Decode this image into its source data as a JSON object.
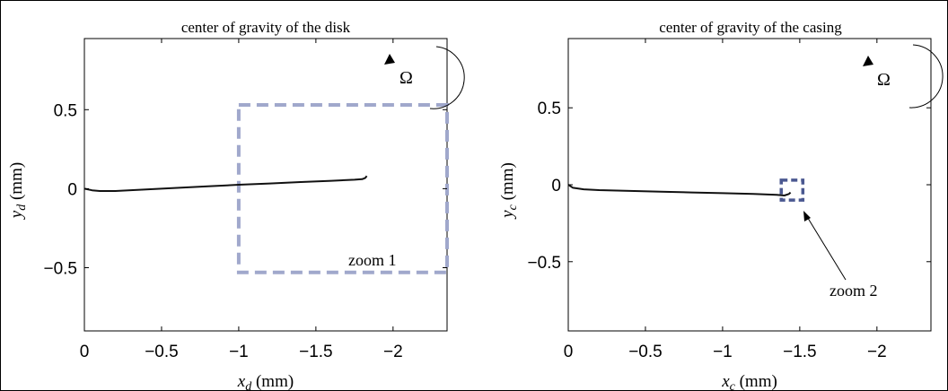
{
  "colors": {
    "curve": "#111111",
    "zoom1_box": "#a0a8cc",
    "zoom2_box": "#4a5890",
    "axes": "#000000",
    "background": "#ffffff"
  },
  "chart_data": [
    {
      "type": "line",
      "title": "center of gravity of the disk",
      "xlabel": {
        "var": "x",
        "sub": "d",
        "unit": " (mm)"
      },
      "ylabel": {
        "var": "y",
        "sub": "d",
        "unit": " (mm)"
      },
      "xlim": [
        0,
        -2.35
      ],
      "ylim": [
        -0.9,
        0.95
      ],
      "x_direction": "reversed",
      "xticks": [
        0,
        -0.5,
        -1,
        -1.5,
        -2
      ],
      "xtick_labels": [
        "0",
        "−0.5",
        "−1",
        "−1.5",
        "−2"
      ],
      "yticks": [
        -0.5,
        0,
        0.5
      ],
      "ytick_labels": [
        "−0.5",
        "0",
        "0.5"
      ],
      "series": [
        {
          "x": [
            0,
            -0.05,
            -0.1,
            -0.2,
            -0.4,
            -0.6,
            -0.8,
            -1.0,
            -1.2,
            -1.4,
            -1.6,
            -1.75,
            -1.8,
            -1.82,
            -1.83
          ],
          "y": [
            0.0,
            -0.01,
            -0.015,
            -0.015,
            -0.005,
            0.005,
            0.015,
            0.025,
            0.033,
            0.042,
            0.05,
            0.057,
            0.06,
            0.068,
            0.08
          ]
        }
      ],
      "annotations": {
        "omega_label": "Ω",
        "zoom_box": {
          "label": "zoom 1",
          "x": [
            -1.0,
            -2.35
          ],
          "y": [
            -0.53,
            0.53
          ]
        }
      },
      "grid": false
    },
    {
      "type": "line",
      "title": "center of gravity of the casing",
      "xlabel": {
        "var": "x",
        "sub": "c",
        "unit": " (mm)"
      },
      "ylabel": {
        "var": "y",
        "sub": "c",
        "unit": " (mm)"
      },
      "xlim": [
        0,
        -2.35
      ],
      "ylim": [
        -0.95,
        0.95
      ],
      "x_direction": "reversed",
      "xticks": [
        0,
        -0.5,
        -1,
        -1.5,
        -2
      ],
      "xtick_labels": [
        "0",
        "−0.5",
        "−1",
        "−1.5",
        "−2"
      ],
      "yticks": [
        -0.5,
        0,
        0.5
      ],
      "ytick_labels": [
        "−0.5",
        "0",
        "0.5"
      ],
      "series": [
        {
          "x": [
            0,
            -0.03,
            -0.1,
            -0.2,
            -0.4,
            -0.6,
            -0.8,
            -1.0,
            -1.2,
            -1.35,
            -1.4,
            -1.43,
            -1.44
          ],
          "y": [
            0.0,
            -0.02,
            -0.03,
            -0.035,
            -0.04,
            -0.045,
            -0.05,
            -0.055,
            -0.06,
            -0.065,
            -0.07,
            -0.06,
            -0.05
          ]
        }
      ],
      "annotations": {
        "omega_label": "Ω",
        "zoom_box": {
          "label": "zoom 2",
          "x": [
            -1.38,
            -1.52
          ],
          "y": [
            -0.1,
            0.03
          ]
        }
      },
      "grid": false
    }
  ]
}
